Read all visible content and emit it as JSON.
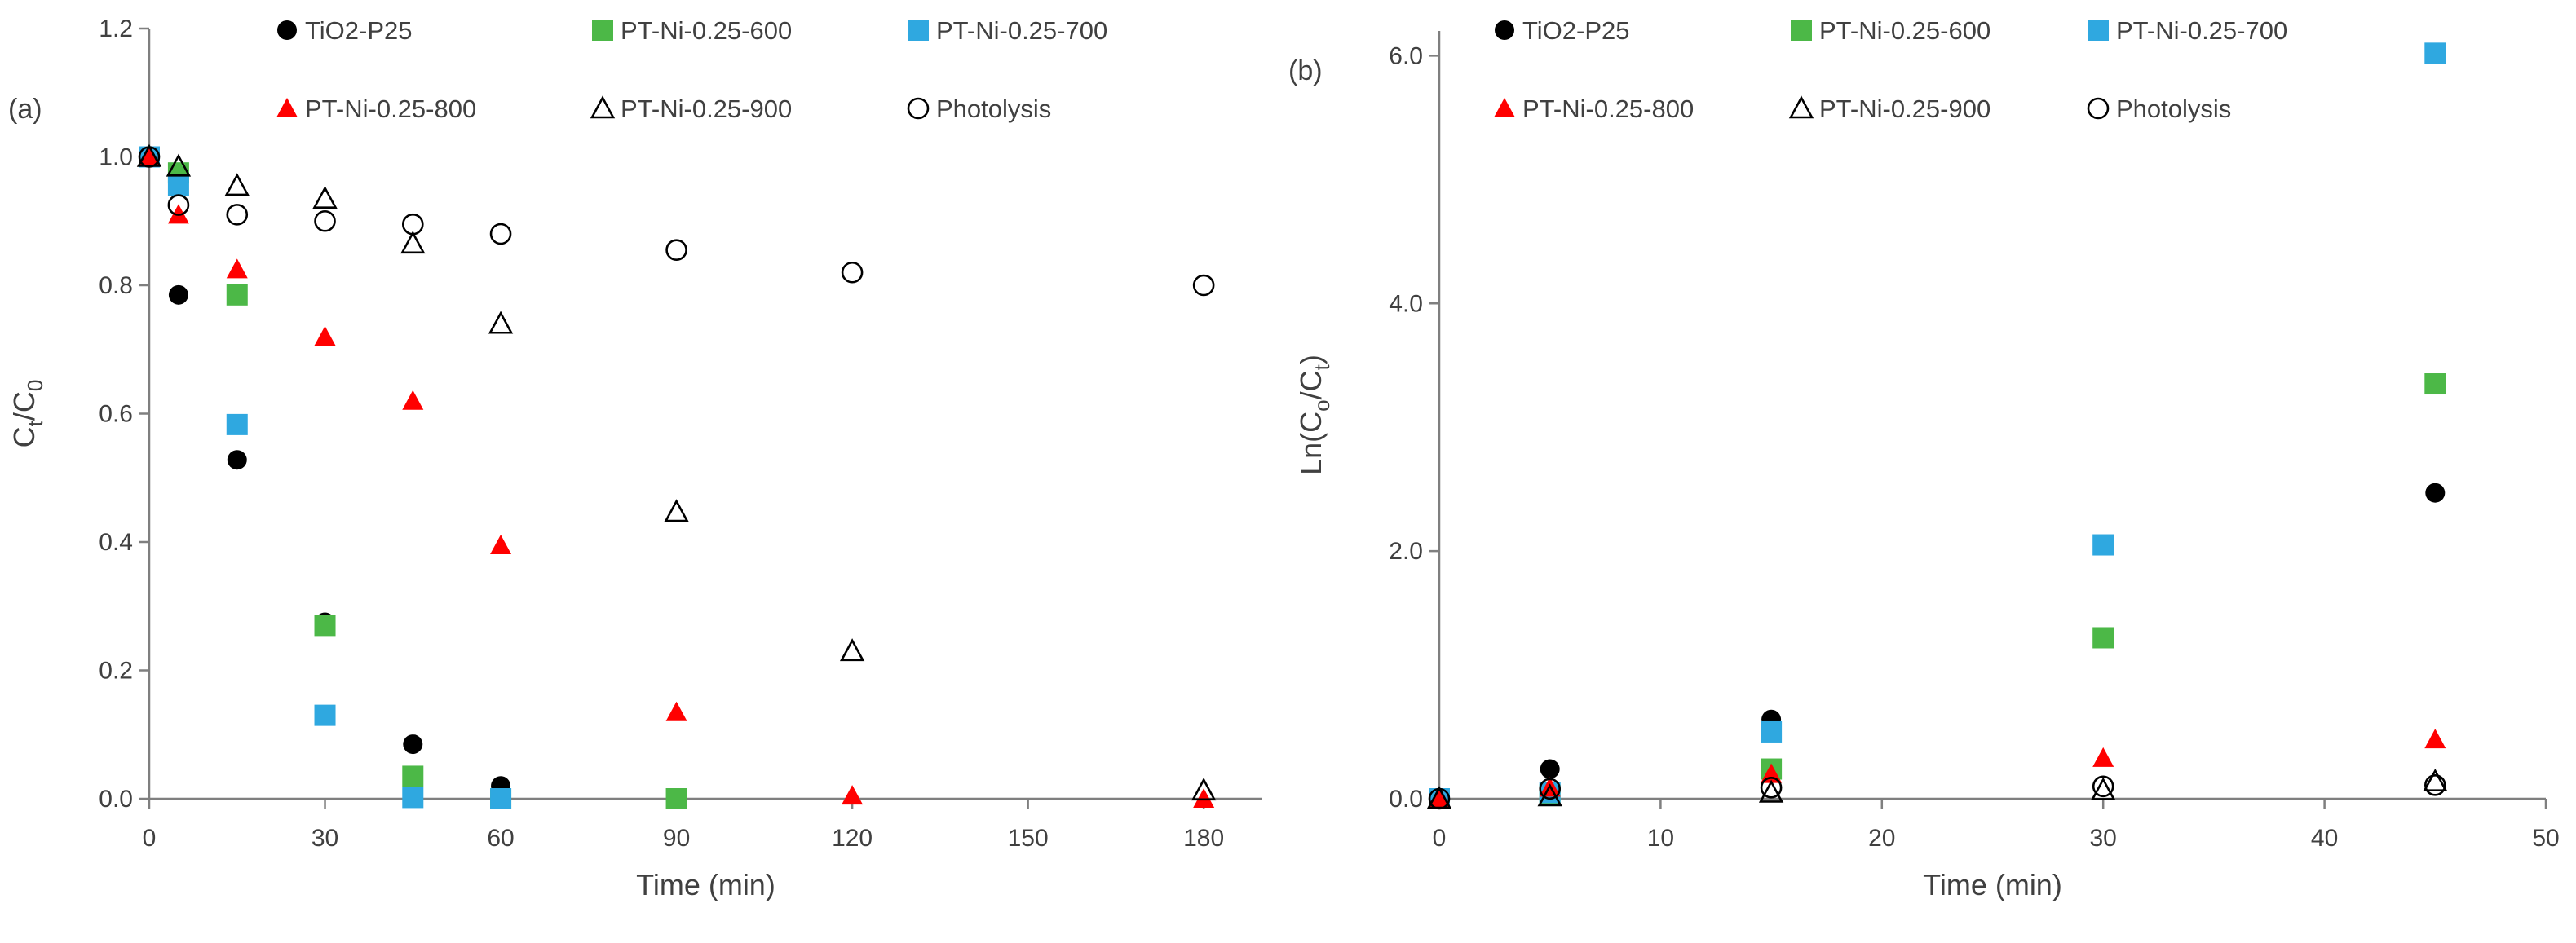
{
  "chart_data": [
    {
      "type": "scatter",
      "panel_label": "(a)",
      "title": "",
      "xlabel": "Time (min)",
      "ylabel_main": "C",
      "ylabel_sub1": "t",
      "ylabel_mid": "/C",
      "ylabel_sub2": "0",
      "xlim": [
        0,
        190
      ],
      "ylim": [
        0,
        1.2
      ],
      "xticks": [
        0,
        30,
        60,
        90,
        120,
        150,
        180
      ],
      "yticks": [
        0.0,
        0.2,
        0.4,
        0.6,
        0.8,
        1.0,
        1.2
      ],
      "ytick_labels": [
        "0.0",
        "0.2",
        "0.4",
        "0.6",
        "0.8",
        "1.0",
        "1.2"
      ],
      "grid": false,
      "legend_position": "top",
      "series": [
        {
          "name": "TiO2-P25",
          "marker": "circle",
          "color": "#000000",
          "filled": true,
          "x": [
            0,
            5,
            15,
            30,
            45,
            60
          ],
          "y": [
            1.0,
            0.785,
            0.528,
            0.275,
            0.085,
            0.02
          ]
        },
        {
          "name": "PT-Ni-0.25-600",
          "marker": "square",
          "color": "#4CB847",
          "filled": true,
          "x": [
            0,
            5,
            15,
            30,
            45,
            60,
            90
          ],
          "y": [
            1.0,
            0.975,
            0.785,
            0.27,
            0.035,
            0.0,
            0.0
          ]
        },
        {
          "name": "PT-Ni-0.25-700",
          "marker": "square",
          "color": "#2FA8E0",
          "filled": true,
          "x": [
            0,
            5,
            15,
            30,
            45,
            60
          ],
          "y": [
            1.0,
            0.955,
            0.583,
            0.13,
            0.002,
            0.0
          ]
        },
        {
          "name": "PT-Ni-0.25-800",
          "marker": "triangle",
          "color": "#FF0000",
          "filled": true,
          "x": [
            0,
            5,
            15,
            30,
            45,
            60,
            90,
            120,
            180
          ],
          "y": [
            1.0,
            0.91,
            0.825,
            0.72,
            0.62,
            0.395,
            0.135,
            0.005,
            0.0
          ]
        },
        {
          "name": "PT-Ni-0.25-900",
          "marker": "triangle",
          "color": "#000000",
          "filled": false,
          "x": [
            0,
            5,
            15,
            30,
            45,
            60,
            90,
            120,
            180
          ],
          "y": [
            1.0,
            0.985,
            0.955,
            0.935,
            0.865,
            0.74,
            0.447,
            0.23,
            0.013
          ]
        },
        {
          "name": "Photolysis",
          "marker": "circle",
          "color": "#000000",
          "filled": false,
          "x": [
            0,
            5,
            15,
            30,
            45,
            60,
            90,
            120,
            180
          ],
          "y": [
            1.0,
            0.925,
            0.91,
            0.9,
            0.895,
            0.88,
            0.855,
            0.82,
            0.8
          ]
        }
      ]
    },
    {
      "type": "scatter",
      "panel_label": "(b)",
      "title": "",
      "xlabel": "Time (min)",
      "ylabel_main": "Ln(C",
      "ylabel_sub1": "o",
      "ylabel_mid": "/C",
      "ylabel_sub2": "t",
      "ylabel_end": ")",
      "xlim": [
        0,
        50
      ],
      "ylim": [
        0,
        6.2
      ],
      "xticks": [
        0,
        10,
        20,
        30,
        40,
        50
      ],
      "yticks": [
        0.0,
        2.0,
        4.0,
        6.0
      ],
      "ytick_labels": [
        "0.0",
        "2.0",
        "4.0",
        "6.0"
      ],
      "grid": false,
      "legend_position": "top",
      "series": [
        {
          "name": "TiO2-P25",
          "marker": "circle",
          "color": "#000000",
          "filled": true,
          "x": [
            0,
            5,
            15,
            45
          ],
          "y": [
            0.0,
            0.24,
            0.64,
            2.47
          ]
        },
        {
          "name": "PT-Ni-0.25-600",
          "marker": "square",
          "color": "#4CB847",
          "filled": true,
          "x": [
            0,
            5,
            15,
            30,
            45
          ],
          "y": [
            0.0,
            0.03,
            0.24,
            1.3,
            3.35
          ]
        },
        {
          "name": "PT-Ni-0.25-700",
          "marker": "square",
          "color": "#2FA8E0",
          "filled": true,
          "x": [
            0,
            5,
            15,
            30,
            45
          ],
          "y": [
            0.0,
            0.05,
            0.54,
            2.05,
            6.02
          ]
        },
        {
          "name": "PT-Ni-0.25-800",
          "marker": "triangle",
          "color": "#FF0000",
          "filled": true,
          "x": [
            0,
            5,
            15,
            30,
            45
          ],
          "y": [
            0.0,
            0.09,
            0.2,
            0.33,
            0.48
          ]
        },
        {
          "name": "PT-Ni-0.25-900",
          "marker": "triangle",
          "color": "#000000",
          "filled": false,
          "x": [
            0,
            5,
            15,
            30,
            45
          ],
          "y": [
            0.0,
            0.02,
            0.05,
            0.07,
            0.14
          ]
        },
        {
          "name": "Photolysis",
          "marker": "circle",
          "color": "#000000",
          "filled": false,
          "x": [
            0,
            5,
            15,
            30,
            45
          ],
          "y": [
            0.0,
            0.08,
            0.09,
            0.1,
            0.11
          ]
        }
      ]
    }
  ]
}
